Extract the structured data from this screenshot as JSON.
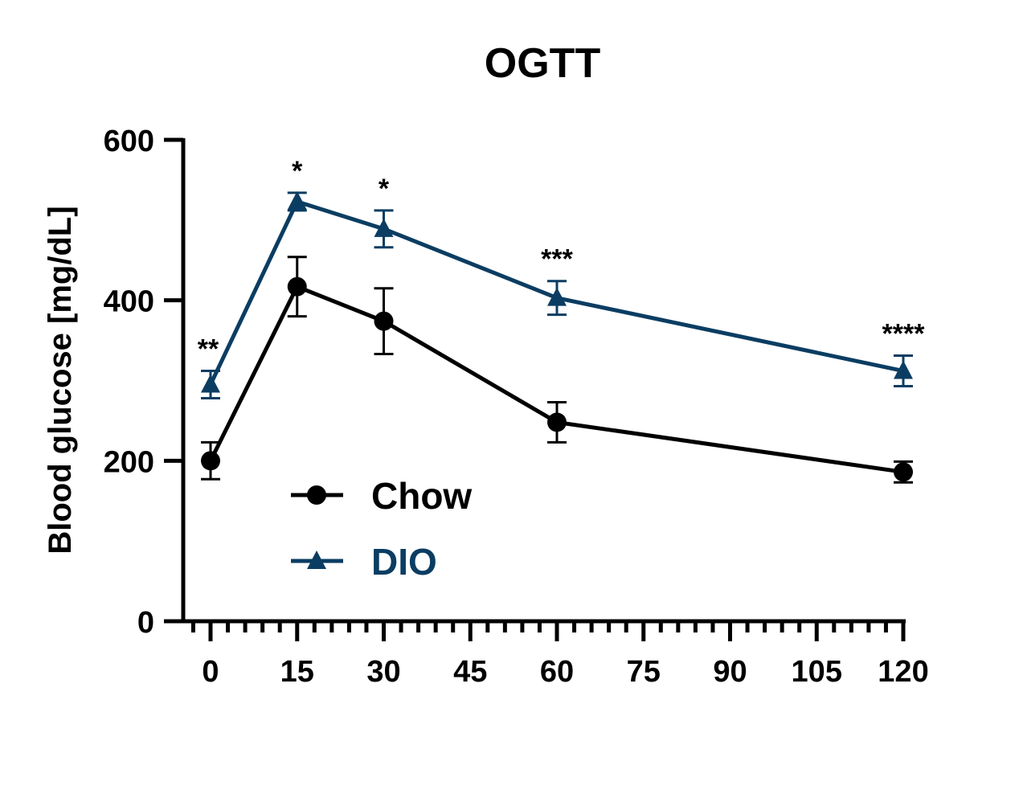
{
  "chart_data": {
    "type": "line",
    "title": "OGTT",
    "xlabel": "",
    "ylabel": "Blood glucose [mg/dL]",
    "x": [
      0,
      15,
      30,
      60,
      120
    ],
    "xticks": [
      0,
      15,
      30,
      45,
      60,
      75,
      90,
      105,
      120
    ],
    "xtick_labels": [
      "0",
      "15",
      "30",
      "45",
      "60",
      "75",
      "90",
      "105",
      "120"
    ],
    "yticks": [
      0,
      200,
      400,
      600
    ],
    "ytick_labels": [
      "0",
      "200",
      "400",
      "600"
    ],
    "xlim": [
      -4,
      120
    ],
    "ylim": [
      0,
      600
    ],
    "grid": false,
    "legend": "bottom-left",
    "series": [
      {
        "name": "Chow",
        "marker": "circle",
        "color": "#000000",
        "values": [
          200,
          417,
          374,
          248,
          186
        ],
        "errors": [
          23,
          37,
          41,
          25,
          13
        ]
      },
      {
        "name": "DIO",
        "marker": "triangle",
        "color": "#0b3d62",
        "values": [
          295,
          523,
          489,
          403,
          312
        ],
        "errors": [
          17,
          11,
          23,
          21,
          19
        ]
      }
    ],
    "annotations": [
      {
        "x": 0,
        "text": "**"
      },
      {
        "x": 15,
        "text": "*"
      },
      {
        "x": 30,
        "text": "*"
      },
      {
        "x": 60,
        "text": "***"
      },
      {
        "x": 120,
        "text": "****"
      }
    ]
  }
}
